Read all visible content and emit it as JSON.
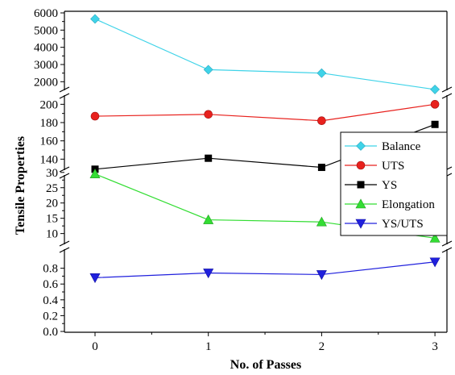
{
  "chart_data": {
    "type": "line",
    "xlabel": "No. of Passes",
    "ylabel": "Tensile Properties",
    "categories": [
      "0",
      "1",
      "2",
      "3"
    ],
    "x": [
      0,
      1,
      2,
      3
    ],
    "broken_y_axis": true,
    "panels": [
      {
        "id": "p1",
        "series": [
          "Balance"
        ],
        "ylim": [
          1500,
          6000
        ],
        "ticks": [
          2000,
          3000,
          4000,
          5000,
          6000
        ],
        "tick_labels": [
          "2000",
          "3000",
          "4000",
          "5000",
          "6000"
        ]
      },
      {
        "id": "p2",
        "series": [
          "UTS",
          "YS"
        ],
        "ylim": [
          120,
          210
        ],
        "ticks": [
          140,
          160,
          180,
          200
        ],
        "tick_labels": [
          "140",
          "160",
          "180",
          "200"
        ]
      },
      {
        "id": "p3",
        "series": [
          "Elongation"
        ],
        "ylim": [
          7,
          31
        ],
        "ticks": [
          10,
          15,
          20,
          25,
          30
        ],
        "tick_labels": [
          "10",
          "15",
          "20",
          "25",
          "30"
        ]
      },
      {
        "id": "p4",
        "series": [
          "YS/UTS"
        ],
        "ylim": [
          0,
          1.0
        ],
        "ticks": [
          0,
          0.2,
          0.4,
          0.6,
          0.8
        ],
        "tick_labels": [
          "0.0",
          "0.2",
          "0.4",
          "0.6",
          "0.8"
        ]
      }
    ],
    "series": [
      {
        "name": "Balance",
        "panel": "p1",
        "marker": "diamond",
        "color": "#3fd3e8",
        "values": [
          5650,
          2700,
          2500,
          1550
        ]
      },
      {
        "name": "UTS",
        "panel": "p2",
        "marker": "circle",
        "color": "#e8211d",
        "values": [
          187,
          189,
          182,
          200
        ]
      },
      {
        "name": "YS",
        "panel": "p2",
        "marker": "square",
        "color": "#000000",
        "values": [
          129,
          141,
          131,
          178
        ]
      },
      {
        "name": "Elongation",
        "panel": "p3",
        "marker": "triangle-up",
        "color": "#33dd33",
        "values": [
          29.5,
          14.5,
          13.8,
          8.5
        ]
      },
      {
        "name": "YS/UTS",
        "panel": "p4",
        "marker": "triangle-down",
        "color": "#2020dd",
        "values": [
          0.68,
          0.74,
          0.72,
          0.88
        ]
      }
    ],
    "legend": {
      "placement": "right",
      "entries": [
        "Balance",
        "UTS",
        "YS",
        "Elongation",
        "YS/UTS"
      ]
    },
    "grid": false
  }
}
